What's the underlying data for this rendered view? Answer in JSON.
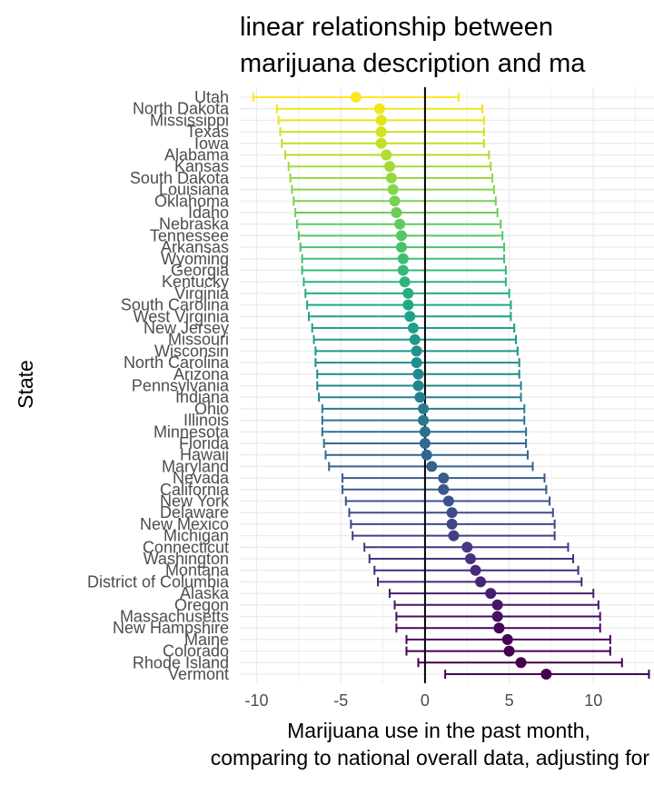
{
  "chart_data": {
    "type": "scatter",
    "subtype": "point-with-errorbars",
    "title": "linear relationship between marijuana description and ma",
    "title_lines": [
      "linear relationship between",
      "marijuana description and ma"
    ],
    "xlabel": "Marijuana use in the past month, comparing to national overall data, adjusting for a",
    "xlabel_lines": [
      "Marijuana use in the past month,",
      "comparing to national overall data, adjusting for a"
    ],
    "ylabel": "State",
    "xlim": [
      -11,
      13.6
    ],
    "xticks": [
      -10,
      -5,
      0,
      5,
      10
    ],
    "reference_line_x": 0,
    "grid": true,
    "color_scale": "viridis",
    "points": [
      {
        "state": "Utah",
        "estimate": -4.1,
        "lower": -10.2,
        "upper": 2.0,
        "color": "#fde725"
      },
      {
        "state": "North Dakota",
        "estimate": -2.7,
        "lower": -8.8,
        "upper": 3.4,
        "color": "#f1e51d"
      },
      {
        "state": "Mississippi",
        "estimate": -2.6,
        "lower": -8.7,
        "upper": 3.5,
        "color": "#e2e418"
      },
      {
        "state": "Texas",
        "estimate": -2.6,
        "lower": -8.6,
        "upper": 3.5,
        "color": "#d2e21b"
      },
      {
        "state": "Iowa",
        "estimate": -2.6,
        "lower": -8.5,
        "upper": 3.5,
        "color": "#c2df23"
      },
      {
        "state": "Alabama",
        "estimate": -2.3,
        "lower": -8.3,
        "upper": 3.8,
        "color": "#b2dd2d"
      },
      {
        "state": "Kansas",
        "estimate": -2.1,
        "lower": -8.1,
        "upper": 3.9,
        "color": "#a2da37"
      },
      {
        "state": "South Dakota",
        "estimate": -2.0,
        "lower": -8.0,
        "upper": 4.0,
        "color": "#93d741"
      },
      {
        "state": "Louisiana",
        "estimate": -1.9,
        "lower": -7.9,
        "upper": 4.1,
        "color": "#85d54a"
      },
      {
        "state": "Oklahoma",
        "estimate": -1.8,
        "lower": -7.8,
        "upper": 4.2,
        "color": "#77d153"
      },
      {
        "state": "Idaho",
        "estimate": -1.7,
        "lower": -7.7,
        "upper": 4.3,
        "color": "#6ccd5a"
      },
      {
        "state": "Nebraska",
        "estimate": -1.5,
        "lower": -7.6,
        "upper": 4.5,
        "color": "#60ca60"
      },
      {
        "state": "Tennessee",
        "estimate": -1.4,
        "lower": -7.5,
        "upper": 4.6,
        "color": "#55c667"
      },
      {
        "state": "Arkansas",
        "estimate": -1.4,
        "lower": -7.4,
        "upper": 4.7,
        "color": "#4ac16d"
      },
      {
        "state": "Wyoming",
        "estimate": -1.3,
        "lower": -7.3,
        "upper": 4.7,
        "color": "#40bd72"
      },
      {
        "state": "Georgia",
        "estimate": -1.3,
        "lower": -7.3,
        "upper": 4.8,
        "color": "#37b878"
      },
      {
        "state": "Kentucky",
        "estimate": -1.2,
        "lower": -7.2,
        "upper": 4.8,
        "color": "#2fb47c"
      },
      {
        "state": "Virginia",
        "estimate": -1.0,
        "lower": -7.1,
        "upper": 5.0,
        "color": "#27ad81"
      },
      {
        "state": "South Carolina",
        "estimate": -1.0,
        "lower": -7.0,
        "upper": 5.1,
        "color": "#22a884"
      },
      {
        "state": "West Virginia",
        "estimate": -0.9,
        "lower": -6.9,
        "upper": 5.1,
        "color": "#1fa188"
      },
      {
        "state": "New Jersey",
        "estimate": -0.7,
        "lower": -6.7,
        "upper": 5.3,
        "color": "#1f9e89"
      },
      {
        "state": "Missouri",
        "estimate": -0.6,
        "lower": -6.6,
        "upper": 5.4,
        "color": "#1f988b"
      },
      {
        "state": "Wisconsin",
        "estimate": -0.5,
        "lower": -6.5,
        "upper": 5.5,
        "color": "#20928c"
      },
      {
        "state": "North Carolina",
        "estimate": -0.5,
        "lower": -6.5,
        "upper": 5.6,
        "color": "#218e8d"
      },
      {
        "state": "Arizona",
        "estimate": -0.4,
        "lower": -6.4,
        "upper": 5.6,
        "color": "#23898e"
      },
      {
        "state": "Pennsylvania",
        "estimate": -0.4,
        "lower": -6.4,
        "upper": 5.7,
        "color": "#25848e"
      },
      {
        "state": "Indiana",
        "estimate": -0.3,
        "lower": -6.3,
        "upper": 5.7,
        "color": "#277f8e"
      },
      {
        "state": "Ohio",
        "estimate": -0.1,
        "lower": -6.1,
        "upper": 5.9,
        "color": "#297a8e"
      },
      {
        "state": "Illinois",
        "estimate": -0.1,
        "lower": -6.1,
        "upper": 5.9,
        "color": "#2b758e"
      },
      {
        "state": "Minnesota",
        "estimate": 0.0,
        "lower": -6.1,
        "upper": 6.0,
        "color": "#2d708e"
      },
      {
        "state": "Florida",
        "estimate": 0.0,
        "lower": -6.0,
        "upper": 6.0,
        "color": "#2f6c8e"
      },
      {
        "state": "Hawaii",
        "estimate": 0.1,
        "lower": -5.9,
        "upper": 6.1,
        "color": "#31678e"
      },
      {
        "state": "Maryland",
        "estimate": 0.4,
        "lower": -5.7,
        "upper": 6.4,
        "color": "#33628d"
      },
      {
        "state": "Nevada",
        "estimate": 1.1,
        "lower": -4.9,
        "upper": 7.1,
        "color": "#365d8d"
      },
      {
        "state": "California",
        "estimate": 1.1,
        "lower": -4.9,
        "upper": 7.2,
        "color": "#38598c"
      },
      {
        "state": "New York",
        "estimate": 1.4,
        "lower": -4.7,
        "upper": 7.4,
        "color": "#3b528b"
      },
      {
        "state": "Delaware",
        "estimate": 1.6,
        "lower": -4.5,
        "upper": 7.6,
        "color": "#3e4c8a"
      },
      {
        "state": "New Mexico",
        "estimate": 1.6,
        "lower": -4.4,
        "upper": 7.7,
        "color": "#404688"
      },
      {
        "state": "Michigan",
        "estimate": 1.7,
        "lower": -4.3,
        "upper": 7.7,
        "color": "#424086"
      },
      {
        "state": "Connecticut",
        "estimate": 2.5,
        "lower": -3.6,
        "upper": 8.5,
        "color": "#453882"
      },
      {
        "state": "Washington",
        "estimate": 2.7,
        "lower": -3.3,
        "upper": 8.8,
        "color": "#46317e"
      },
      {
        "state": "Montana",
        "estimate": 3.0,
        "lower": -3.0,
        "upper": 9.1,
        "color": "#472a7a"
      },
      {
        "state": "District of Columbia",
        "estimate": 3.3,
        "lower": -2.8,
        "upper": 9.3,
        "color": "#482475"
      },
      {
        "state": "Alaska",
        "estimate": 3.9,
        "lower": -2.1,
        "upper": 10.0,
        "color": "#481d6f"
      },
      {
        "state": "Oregon",
        "estimate": 4.3,
        "lower": -1.8,
        "upper": 10.3,
        "color": "#481668"
      },
      {
        "state": "Massachusetts",
        "estimate": 4.3,
        "lower": -1.7,
        "upper": 10.4,
        "color": "#470e61"
      },
      {
        "state": "New Hampshire",
        "estimate": 4.4,
        "lower": -1.7,
        "upper": 10.4,
        "color": "#46075a"
      },
      {
        "state": "Maine",
        "estimate": 4.9,
        "lower": -1.1,
        "upper": 11.0,
        "color": "#450256"
      },
      {
        "state": "Colorado",
        "estimate": 5.0,
        "lower": -1.1,
        "upper": 11.0,
        "color": "#44014f"
      },
      {
        "state": "Rhode Island",
        "estimate": 5.7,
        "lower": -0.4,
        "upper": 11.7,
        "color": "#440149"
      },
      {
        "state": "Vermont",
        "estimate": 7.2,
        "lower": 1.2,
        "upper": 13.3,
        "color": "#440154"
      }
    ]
  }
}
